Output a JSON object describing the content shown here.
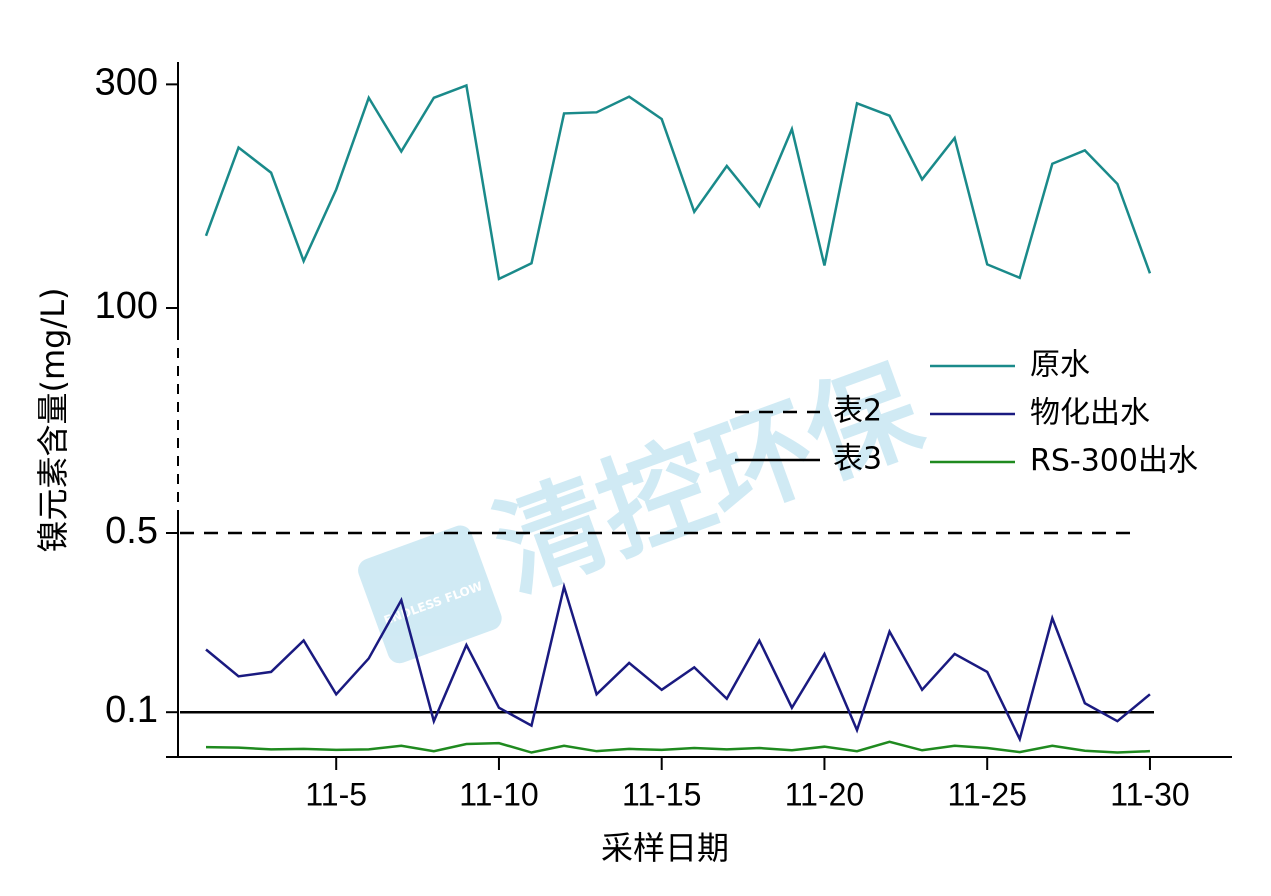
{
  "chart_data": {
    "type": "line",
    "y_label": "镍元素含量(mg/L)",
    "x_label": "采样日期",
    "watermark": "清控环保",
    "watermark_sub": "ENDLESS FLOW",
    "categories": [
      null,
      null,
      null,
      null,
      "11-5",
      null,
      null,
      null,
      null,
      "11-10",
      null,
      null,
      null,
      null,
      "11-15",
      null,
      null,
      null,
      null,
      "11-20",
      null,
      null,
      null,
      null,
      "11-25",
      null,
      null,
      null,
      null,
      "11-30"
    ],
    "ylim": [
      0,
      320
    ],
    "ybreak": [
      0.5,
      100
    ],
    "yticks": [
      0.1,
      0.5,
      100,
      300
    ],
    "series": [
      {
        "name": "原水",
        "color": "#1a8a8a",
        "values": [
          164.6,
          243.5,
          221,
          142,
          206,
          288,
          240,
          288,
          299,
          126,
          140,
          274,
          275,
          289,
          269,
          186,
          227,
          191,
          260,
          138,
          283,
          272,
          215,
          252,
          139,
          127,
          229,
          241,
          211,
          131
        ]
      },
      {
        "name": "物化出水",
        "color": "#1a1a80",
        "values": [
          0.24,
          0.18,
          0.19,
          0.26,
          0.14,
          0.22,
          0.35,
          0.08,
          0.25,
          0.11,
          0.07,
          0.38,
          0.14,
          0.21,
          0.15,
          0.2,
          0.13,
          0.26,
          0.11,
          0.23,
          0.06,
          0.28,
          0.15,
          0.23,
          0.19,
          0.04,
          0.31,
          0.12,
          0.08,
          0.14
        ]
      },
      {
        "name": "RS-300出水",
        "color": "#1f8a1f",
        "values": [
          0.022,
          0.021,
          0.017,
          0.018,
          0.016,
          0.017,
          0.025,
          0.013,
          0.029,
          0.031,
          0.01,
          0.025,
          0.013,
          0.018,
          0.016,
          0.02,
          0.017,
          0.02,
          0.015,
          0.023,
          0.013,
          0.034,
          0.015,
          0.025,
          0.02,
          0.011,
          0.025,
          0.014,
          0.01,
          0.013
        ]
      }
    ],
    "reference_lines": [
      {
        "name": "表2",
        "value": 0.5,
        "style": "dashed",
        "color": "#000000"
      },
      {
        "name": "表3",
        "value": 0.1,
        "style": "solid",
        "color": "#000000"
      }
    ]
  }
}
